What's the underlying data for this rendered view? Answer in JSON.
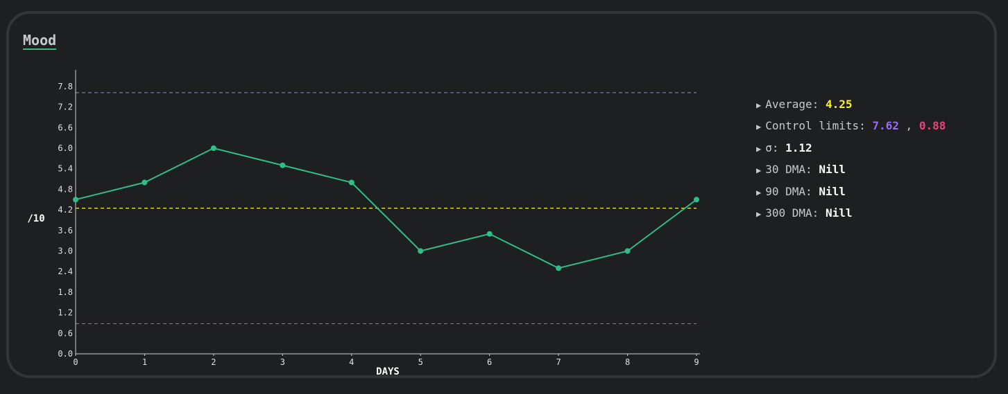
{
  "title": "Mood",
  "stats": {
    "average_label": "Average:",
    "average_value": "4.25",
    "control_label": "Control limits:",
    "control_upper": "7.62",
    "control_sep": ",",
    "control_lower": "0.88",
    "sigma_label": "σ:",
    "sigma_value": "1.12",
    "dma30_label": "30 DMA:",
    "dma30_value": "Nill",
    "dma90_label": "90 DMA:",
    "dma90_value": "Nill",
    "dma300_label": "300 DMA:",
    "dma300_value": "Nill",
    "arrow_icon": "triangle-right-icon"
  },
  "chart_data": {
    "type": "line",
    "xlabel": "DAYS",
    "ylabel": "/10",
    "x": [
      0,
      1,
      2,
      3,
      4,
      5,
      6,
      7,
      8,
      9
    ],
    "series": [
      {
        "values": [
          4.5,
          5.0,
          6.0,
          5.5,
          5.0,
          3.0,
          3.5,
          2.5,
          3.0,
          4.5
        ]
      }
    ],
    "yticks": [
      "0.0",
      "0.6",
      "1.2",
      "1.8",
      "2.4",
      "3.0",
      "3.6",
      "4.2",
      "4.8",
      "5.4",
      "6.0",
      "6.6",
      "7.2",
      "7.8"
    ],
    "xticks": [
      "0",
      "1",
      "2",
      "3",
      "4",
      "5",
      "6",
      "7",
      "8",
      "9"
    ],
    "ylim": [
      0,
      8.2
    ],
    "xlim": [
      0,
      9
    ],
    "reference_lines": [
      {
        "value": 7.62,
        "color": "#9a6cf0",
        "meaning": "upper control limit"
      },
      {
        "value": 4.25,
        "color": "#f5f52a",
        "meaning": "average"
      },
      {
        "value": 0.88,
        "color": "#e8437c",
        "meaning": "lower control limit"
      }
    ],
    "line_color": "#2fbf86",
    "grid": false,
    "legend": "none"
  }
}
